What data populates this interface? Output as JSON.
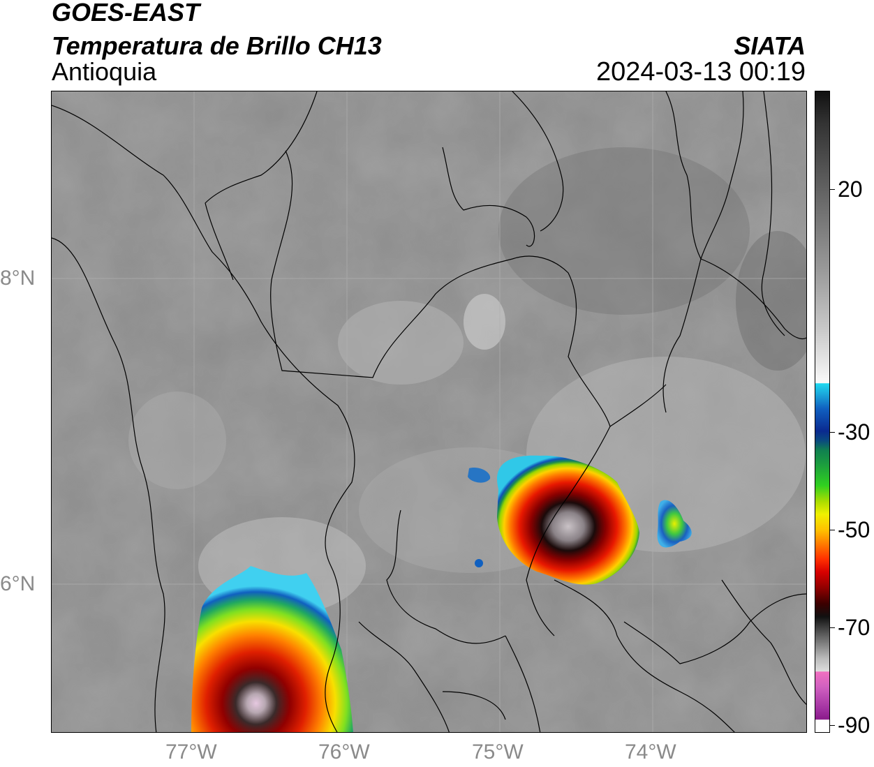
{
  "header": {
    "satellite": "GOES-EAST",
    "product": "Temperatura de Brillo CH13",
    "region": "Antioquia",
    "agency": "SIATA",
    "datetime": "2024-03-13 00:19"
  },
  "map": {
    "lon_labels": [
      "77°W",
      "76°W",
      "75°W",
      "74°W"
    ],
    "lat_labels": [
      "8°N",
      "6°N"
    ]
  },
  "colorbar": {
    "tick_labels": [
      "20",
      "-30",
      "-50",
      "-70",
      "-90"
    ],
    "palette": {
      "warm": "#8a8a8a",
      "cold_cyan": "#20d8f0",
      "cold_green": "#30d020",
      "cold_yellow": "#f0f000",
      "cold_red": "#d80000",
      "coldest_magenta": "#d060c0"
    }
  }
}
